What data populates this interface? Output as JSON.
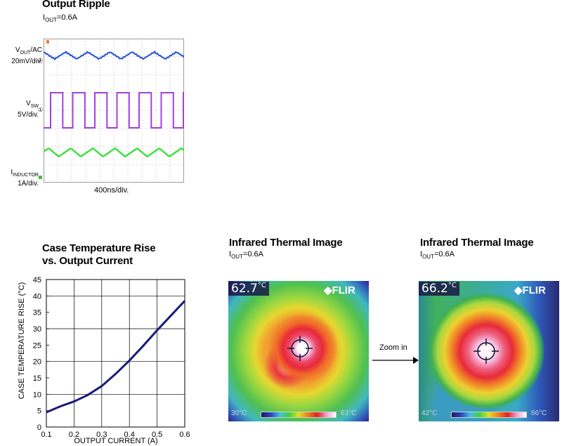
{
  "scope": {
    "title": "Output Ripple",
    "subtitle_main": "I",
    "subtitle_sub": "OUT",
    "subtitle_tail": "=0.6A",
    "ch1_label_main": "V",
    "ch1_label_sub": "OUT",
    "ch1_label_tail": "/AC",
    "ch1_scale": "20mV/div.",
    "ch2_label_main": "V",
    "ch2_label_sub": "SW",
    "ch2_scale": "5V/div.",
    "ch3_label_main": "I",
    "ch3_label_sub": "INDUCTOR",
    "ch3_scale": "1A/div.",
    "time_scale": "400ns/div.",
    "colors": {
      "vout": "#2050e0",
      "vsw": "#a040e0",
      "iind": "#40e040",
      "grid": "#909090"
    }
  },
  "chart_data": {
    "type": "line",
    "title": "Case Temperature Rise",
    "subtitle": "vs. Output Current",
    "xlabel": "OUTPUT CURRENT (A)",
    "ylabel": "CASE TEMPERATURE RISE (°C)",
    "xlim": [
      0.1,
      0.6
    ],
    "ylim": [
      0,
      45
    ],
    "x_ticks": [
      "0.1",
      "0.2",
      "0.3",
      "0.4",
      "0.5",
      "0.6"
    ],
    "y_ticks": [
      "0",
      "5",
      "10",
      "15",
      "20",
      "25",
      "30",
      "35",
      "40",
      "45"
    ],
    "grid": true,
    "series": [
      {
        "color": "#1a1a7a",
        "x": [
          0.1,
          0.15,
          0.2,
          0.25,
          0.3,
          0.35,
          0.4,
          0.45,
          0.5,
          0.55,
          0.6
        ],
        "y": [
          4.5,
          6.3,
          7.8,
          9.8,
          12.5,
          16.2,
          20.3,
          24.8,
          29.5,
          34.0,
          38.5
        ]
      }
    ]
  },
  "thermal1": {
    "title": "Infrared Thermal Image",
    "subtitle_main": "I",
    "subtitle_sub": "OUT",
    "subtitle_tail": "=0.6A",
    "temp_value": "62.7",
    "temp_unit": "°C",
    "brand": "FLIR",
    "scale_min": "30°C",
    "scale_max": "63°C"
  },
  "thermal2": {
    "title": "Infrared Thermal Image",
    "subtitle_main": "I",
    "subtitle_sub": "OUT",
    "subtitle_tail": "=0.6A",
    "temp_value": "66.2",
    "temp_unit": "°C",
    "brand": "FLIR",
    "scale_min": "42°C",
    "scale_max": "66°C"
  },
  "zoom_label": "Zoom in"
}
